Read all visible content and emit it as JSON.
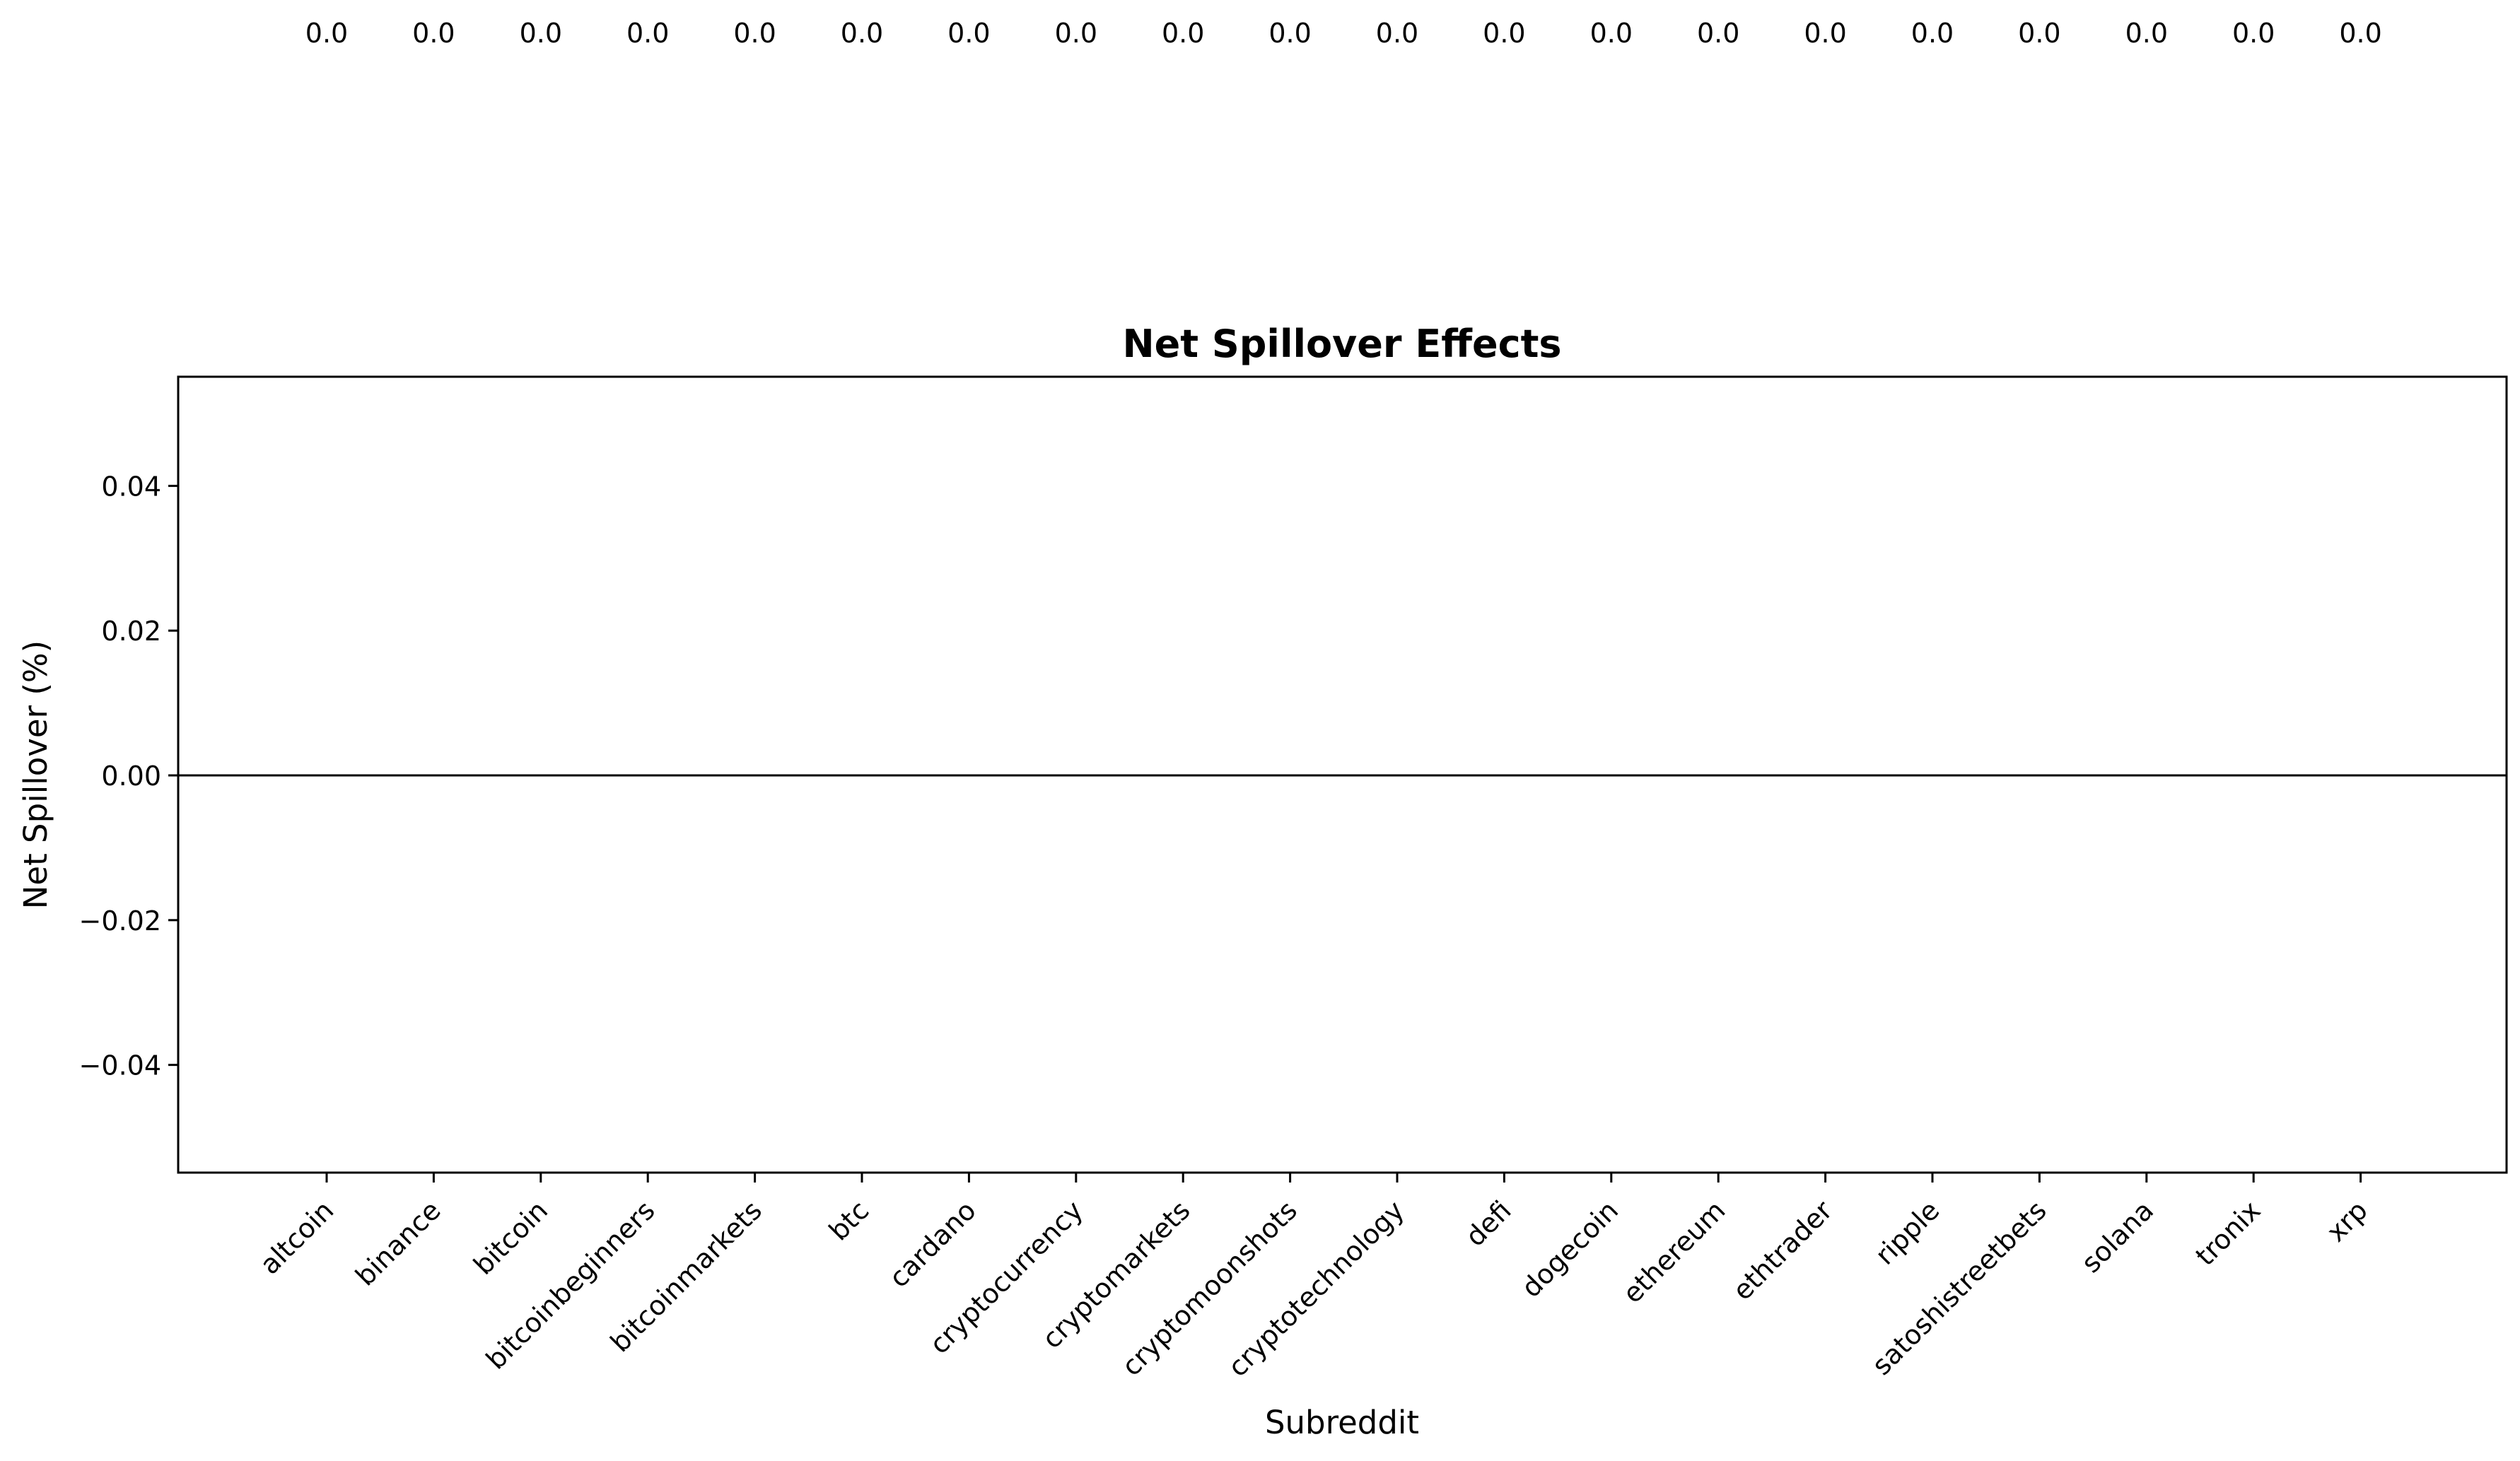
{
  "chart_data": {
    "type": "bar",
    "title": "Net Spillover Effects",
    "xlabel": "Subreddit",
    "ylabel": "Net Spillover (%)",
    "categories": [
      "altcoin",
      "binance",
      "bitcoin",
      "bitcoinbeginners",
      "bitcoinmarkets",
      "btc",
      "cardano",
      "cryptocurrency",
      "cryptomarkets",
      "cryptomoonshots",
      "cryptotechnology",
      "defi",
      "dogecoin",
      "ethereum",
      "ethtrader",
      "ripple",
      "satoshistreetbets",
      "solana",
      "tronix",
      "xrp"
    ],
    "values": [
      0,
      0,
      0,
      0,
      0,
      0,
      0,
      0,
      0,
      0,
      0,
      0,
      0,
      0,
      0,
      0,
      0,
      0,
      0,
      0
    ],
    "value_labels": [
      "0.0",
      "0.0",
      "0.0",
      "0.0",
      "0.0",
      "0.0",
      "0.0",
      "0.0",
      "0.0",
      "0.0",
      "0.0",
      "0.0",
      "0.0",
      "0.0",
      "0.0",
      "0.0",
      "0.0",
      "0.0",
      "0.0",
      "0.0"
    ],
    "yticks": [
      -0.04,
      -0.02,
      0.0,
      0.02,
      0.04
    ],
    "ytick_labels": [
      "−0.04",
      "−0.02",
      "0.00",
      "0.02",
      "0.04"
    ],
    "ylim": [
      -0.055,
      0.055
    ],
    "grid": false,
    "zero_line": true,
    "colors": {
      "axis": "#000000",
      "background": "#ffffff"
    }
  }
}
